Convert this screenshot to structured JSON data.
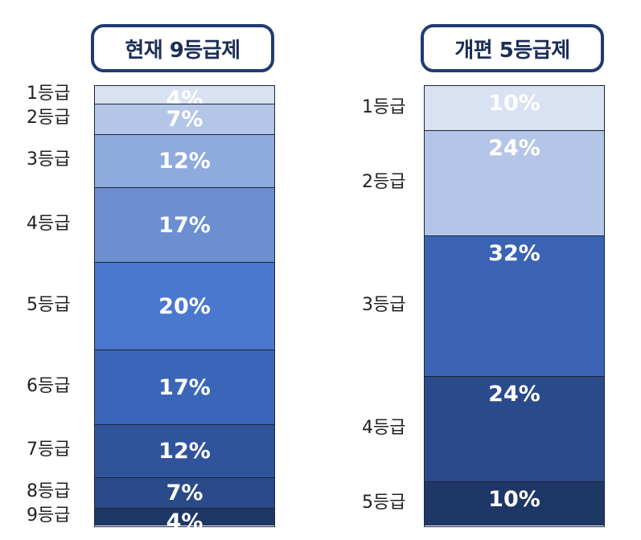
{
  "current": {
    "title": "현재 9등급제",
    "grades": [
      {
        "label": "1등급",
        "pct": 4,
        "pct_label": "4%",
        "color": "#d9e2f3"
      },
      {
        "label": "2등급",
        "pct": 7,
        "pct_label": "7%",
        "color": "#b4c6e7"
      },
      {
        "label": "3등급",
        "pct": 12,
        "pct_label": "12%",
        "color": "#8faadc"
      },
      {
        "label": "4등급",
        "pct": 17,
        "pct_label": "17%",
        "color": "#6b8fd1"
      },
      {
        "label": "5등급",
        "pct": 20,
        "pct_label": "20%",
        "color": "#4a78cf"
      },
      {
        "label": "6등급",
        "pct": 17,
        "pct_label": "17%",
        "color": "#3b66b7"
      },
      {
        "label": "7등급",
        "pct": 12,
        "pct_label": "12%",
        "color": "#2f549c"
      },
      {
        "label": "8등급",
        "pct": 7,
        "pct_label": "7%",
        "color": "#2a4a8a"
      },
      {
        "label": "9등급",
        "pct": 4,
        "pct_label": "4%",
        "color": "#1f3766"
      }
    ]
  },
  "reform": {
    "title": "개편 5등급제",
    "grades": [
      {
        "label": "1등급",
        "pct": 10,
        "pct_label": "10%",
        "color": "#d9e2f3"
      },
      {
        "label": "2등급",
        "pct": 24,
        "pct_label": "24%",
        "color": "#b4c6e7"
      },
      {
        "label": "3등급",
        "pct": 32,
        "pct_label": "32%",
        "color": "#3a63b3"
      },
      {
        "label": "4등급",
        "pct": 24,
        "pct_label": "24%",
        "color": "#2a4a8a"
      },
      {
        "label": "5등급",
        "pct": 10,
        "pct_label": "10%",
        "color": "#1f3766"
      }
    ]
  }
}
